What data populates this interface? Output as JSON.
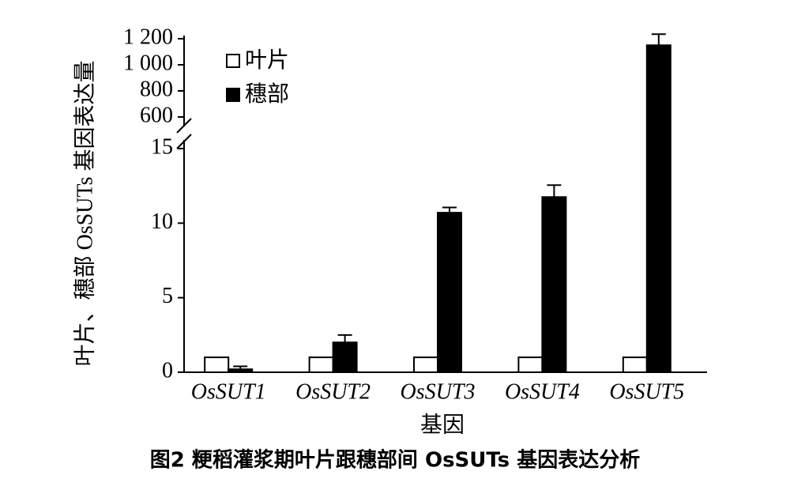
{
  "chart_data": {
    "type": "bar",
    "caption": "图2  粳稻灌浆期叶片跟穗部间 OsSUTs 基因表达分析",
    "x_label": "基因",
    "y_label": "叶片、穗部 OsSUTs 基因表达量",
    "categories": [
      "OsSUT1",
      "OsSUT2",
      "OsSUT3",
      "OsSUT4",
      "OsSUT5"
    ],
    "series": [
      {
        "name": "叶片",
        "color": "#ffffff",
        "values": [
          1,
          1,
          1,
          1,
          1
        ]
      },
      {
        "name": "穗部",
        "color": "#000000",
        "values": [
          0.2,
          2.0,
          10.7,
          11.75,
          1150
        ],
        "errors": [
          0.2,
          0.5,
          0.35,
          0.8,
          85
        ]
      }
    ],
    "ylim": [
      0,
      15
    ],
    "yticks": [
      0,
      5,
      10,
      15
    ],
    "ylim_upper": [
      600,
      1200
    ],
    "yticks_upper": [
      600,
      800,
      {
        "value": 1000,
        "label": "1 000"
      },
      {
        "value": 1200,
        "label": "1 200"
      }
    ],
    "axis_break": true,
    "legend": "upper left"
  }
}
